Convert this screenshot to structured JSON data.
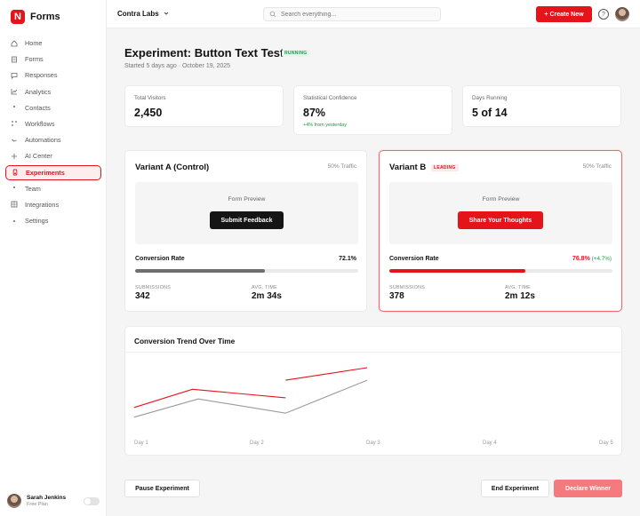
{
  "app": {
    "name": "Forms",
    "logo_letter": "N",
    "accent": "#e5141b"
  },
  "sidebar": {
    "items": [
      {
        "label": "Home",
        "icon": "home-icon"
      },
      {
        "label": "Forms",
        "icon": "document-icon"
      },
      {
        "label": "Responses",
        "icon": "chat-icon"
      },
      {
        "label": "Analytics",
        "icon": "chart-icon"
      },
      {
        "label": "Contacts",
        "icon": "dot-icon"
      },
      {
        "label": "Workflows",
        "icon": "workflow-icon"
      },
      {
        "label": "Automations",
        "icon": "automation-icon"
      },
      {
        "label": "AI Center",
        "icon": "sparkle-icon"
      },
      {
        "label": "Experiments",
        "icon": "flask-icon",
        "active": true
      },
      {
        "label": "Team",
        "icon": "dot-icon"
      },
      {
        "label": "Integrations",
        "icon": "grid-icon"
      },
      {
        "label": "Settings",
        "icon": "dot-icon"
      }
    ],
    "user": {
      "name": "Sarah Jenkins",
      "plan": "Free Plan"
    }
  },
  "topbar": {
    "org": "Contra Labs",
    "search_placeholder": "Search everything...",
    "create_label": "+ Create New",
    "help_glyph": "?"
  },
  "experiment": {
    "title": "Experiment: Button Text Test",
    "status": "RUNNING",
    "subtitle": "Started 5 days ago · October 19, 2025"
  },
  "stats": [
    {
      "label": "Total Visitors",
      "value": "2,450",
      "delta": ""
    },
    {
      "label": "Statistical Confidence",
      "value": "87%",
      "delta": "+4% from yesterday"
    },
    {
      "label": "Days Running",
      "value": "5 of 14",
      "delta": ""
    }
  ],
  "variants": {
    "a": {
      "title": "Variant A (Control)",
      "traffic": "50% Traffic",
      "preview_label": "Form Preview",
      "button": "Submit Feedback",
      "cr_label": "Conversion Rate",
      "cr_value": "72.1%",
      "cr_fraction": 0.58,
      "submissions_label": "SUBMISSIONS",
      "submissions": "342",
      "avg_time_label": "AVG. TIME",
      "avg_time": "2m 34s"
    },
    "b": {
      "title": "Variant B",
      "badge": "LEADING",
      "traffic": "50% Traffic",
      "preview_label": "Form Preview",
      "button": "Share Your Thoughts",
      "cr_label": "Conversion Rate",
      "cr_value": "76.8%",
      "cr_delta": "(+4.7%)",
      "cr_fraction": 0.61,
      "submissions_label": "SUBMISSIONS",
      "submissions": "378",
      "avg_time_label": "AVG. TIME",
      "avg_time": "2m 12s"
    }
  },
  "chart_data": {
    "type": "line",
    "title": "Conversion Trend Over Time",
    "categories": [
      "Day 1",
      "Day 2",
      "Day 3",
      "Day 4",
      "Day 5"
    ],
    "series": [
      {
        "color": "#e5141b",
        "segments": [
          [
            [
              0,
              0.3
            ],
            [
              0.5,
              0.62
            ],
            [
              1.3,
              0.47
            ]
          ],
          [
            [
              1.3,
              0.78
            ],
            [
              2.0,
              1.0
            ]
          ]
        ]
      },
      {
        "color": "#9a9a9a",
        "segments": [
          [
            [
              0,
              0.13
            ],
            [
              0.55,
              0.45
            ],
            [
              1.3,
              0.2
            ],
            [
              2.0,
              0.78
            ]
          ]
        ]
      }
    ],
    "ylim": [
      0,
      1
    ],
    "grid": false
  },
  "footer": {
    "pause_label": "Pause Experiment",
    "end_label": "End Experiment",
    "declare_label": "Declare Winner"
  }
}
